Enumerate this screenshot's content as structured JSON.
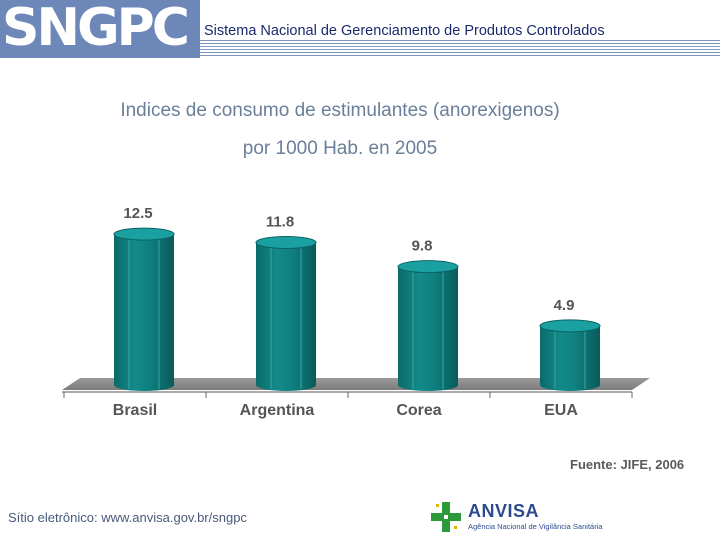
{
  "header": {
    "logo": "SNGPC",
    "title": "Sistema Nacional de Gerenciamento de Produtos Controlados"
  },
  "footer": {
    "site": "Sítio eletrônico: www.anvisa.gov.br/sngpc",
    "logo_name": "ANVISA",
    "logo_subtitle": "Agência Nacional de Vigilância Sanitária"
  },
  "colors": {
    "bar": "#0f7f7f",
    "bar_dark": "#0a5a5a",
    "floor": "#7b7b7b",
    "header_blue": "#6d87b8"
  },
  "chart_data": {
    "type": "bar",
    "title": "Indices de consumo de estimulantes (anorexigenos)",
    "subtitle": "por 1000 Hab. en 2005",
    "categories": [
      "Brasil",
      "Argentina",
      "Corea",
      "EUA"
    ],
    "values": [
      12.5,
      11.8,
      9.8,
      4.9
    ],
    "value_labels": [
      "12.5",
      "11.8",
      "9.8",
      "4.9"
    ],
    "ylim": [
      0,
      13.5
    ],
    "grid": false,
    "legend": "none",
    "source": "Fuente: JIFE, 2006"
  }
}
